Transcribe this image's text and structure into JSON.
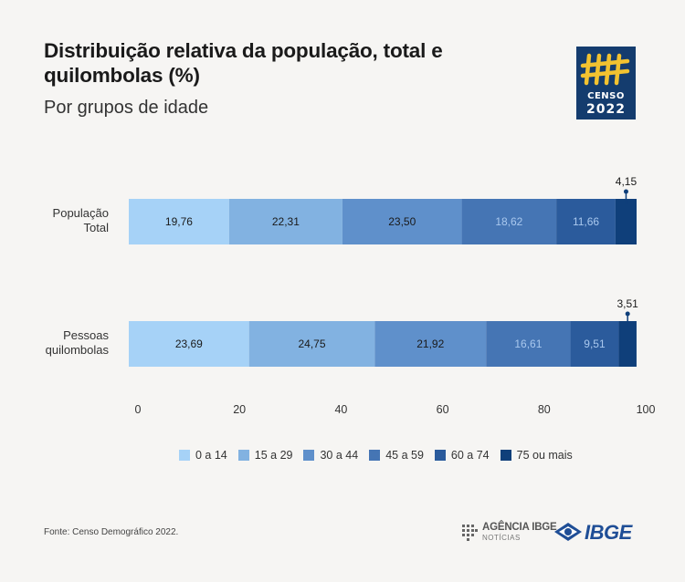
{
  "header": {
    "title": "Distribuição relativa da população, total e quilombolas (%)",
    "subtitle": "Por grupos de idade"
  },
  "logo": {
    "line1": "CENSO",
    "line2": "2022",
    "icon": "tally-marks-icon",
    "background": "#143c6e",
    "accent": "#f2c230"
  },
  "footer": {
    "source": "Fonte: Censo Demográfico 2022.",
    "agencia_name": "AGÊNCIA IBGE",
    "agencia_sub": "NOTÍCIAS",
    "ibge": "IBGE"
  },
  "chart_data": {
    "type": "bar",
    "orientation": "horizontal",
    "stacked": true,
    "categories": [
      [
        "População",
        "Total"
      ],
      [
        "Pessoas",
        "quilombolas"
      ]
    ],
    "series": [
      {
        "name": "0 a 14",
        "values": [
          19.76,
          23.69
        ],
        "labels": [
          "19,76",
          "23,69"
        ],
        "color": "#a6d2f7",
        "label_color": "#1a1a1a"
      },
      {
        "name": "15 a 29",
        "values": [
          22.31,
          24.75
        ],
        "labels": [
          "22,31",
          "24,75"
        ],
        "color": "#82b2e1",
        "label_color": "#1a1a1a"
      },
      {
        "name": "30 a 44",
        "values": [
          23.5,
          21.92
        ],
        "labels": [
          "23,50",
          "21,92"
        ],
        "color": "#5f90cb",
        "label_color": "#1a1a1a"
      },
      {
        "name": "45 a 59",
        "values": [
          18.62,
          16.61
        ],
        "labels": [
          "18,62",
          "16,61"
        ],
        "color": "#4575b4",
        "label_color": "#a9c8ee"
      },
      {
        "name": "60 a 74",
        "values": [
          11.66,
          9.51
        ],
        "labels": [
          "11,66",
          "9,51"
        ],
        "color": "#2b5b9c",
        "label_color": "#a9c8ee"
      },
      {
        "name": "75 ou mais",
        "values": [
          4.15,
          3.51
        ],
        "labels": [
          "4,15",
          "3,51"
        ],
        "color": "#0f3f7a",
        "label_color": "#1a1a1a"
      }
    ],
    "xlim": [
      0,
      100
    ],
    "xticks": [
      0,
      20,
      40,
      60,
      80,
      100
    ],
    "legend": "bottom",
    "grid": false
  }
}
